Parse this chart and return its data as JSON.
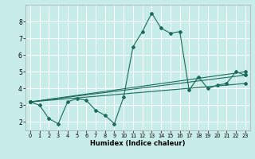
{
  "xlabel": "Humidex (Indice chaleur)",
  "background_color": "#c8ece8",
  "grid_color": "#ffffff",
  "line_color": "#1a6b5a",
  "xlim": [
    -0.5,
    23.5
  ],
  "ylim": [
    1.5,
    9.0
  ],
  "yticks": [
    2,
    3,
    4,
    5,
    6,
    7,
    8
  ],
  "xticks": [
    0,
    1,
    2,
    3,
    4,
    5,
    6,
    7,
    8,
    9,
    10,
    11,
    12,
    13,
    14,
    15,
    16,
    17,
    18,
    19,
    20,
    21,
    22,
    23
  ],
  "series1_x": [
    0,
    1,
    2,
    3,
    4,
    5,
    6,
    7,
    8,
    9,
    10,
    11,
    12,
    13,
    14,
    15,
    16,
    17,
    18,
    19,
    20,
    21,
    22,
    23
  ],
  "series1_y": [
    3.2,
    3.0,
    2.2,
    1.9,
    3.2,
    3.4,
    3.3,
    2.7,
    2.4,
    1.9,
    3.5,
    6.5,
    7.4,
    8.5,
    7.6,
    7.3,
    7.4,
    3.9,
    4.7,
    4.0,
    4.2,
    4.3,
    5.0,
    4.8
  ],
  "line2_x": [
    0,
    23
  ],
  "line2_y": [
    3.2,
    5.0
  ],
  "line3_x": [
    0,
    23
  ],
  "line3_y": [
    3.2,
    4.8
  ],
  "line4_x": [
    0,
    23
  ],
  "line4_y": [
    3.2,
    4.3
  ]
}
